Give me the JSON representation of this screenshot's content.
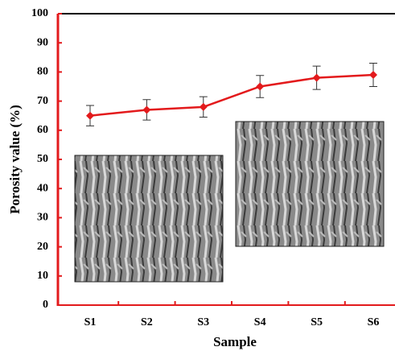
{
  "chart_data": {
    "type": "line",
    "x_label": "Sample",
    "y_label": "Porosity value (%)",
    "categories": [
      "S1",
      "S2",
      "S3",
      "S4",
      "S5",
      "S6"
    ],
    "series": [
      {
        "color": "#e31a1c",
        "values": [
          65,
          67,
          68,
          75,
          78,
          79
        ],
        "errors": [
          3.5,
          3.5,
          3.5,
          3.8,
          4,
          4
        ]
      }
    ],
    "ylim": [
      0,
      100
    ],
    "yticks": [
      0,
      10,
      20,
      30,
      40,
      50,
      60,
      70,
      80,
      90,
      100
    ]
  }
}
